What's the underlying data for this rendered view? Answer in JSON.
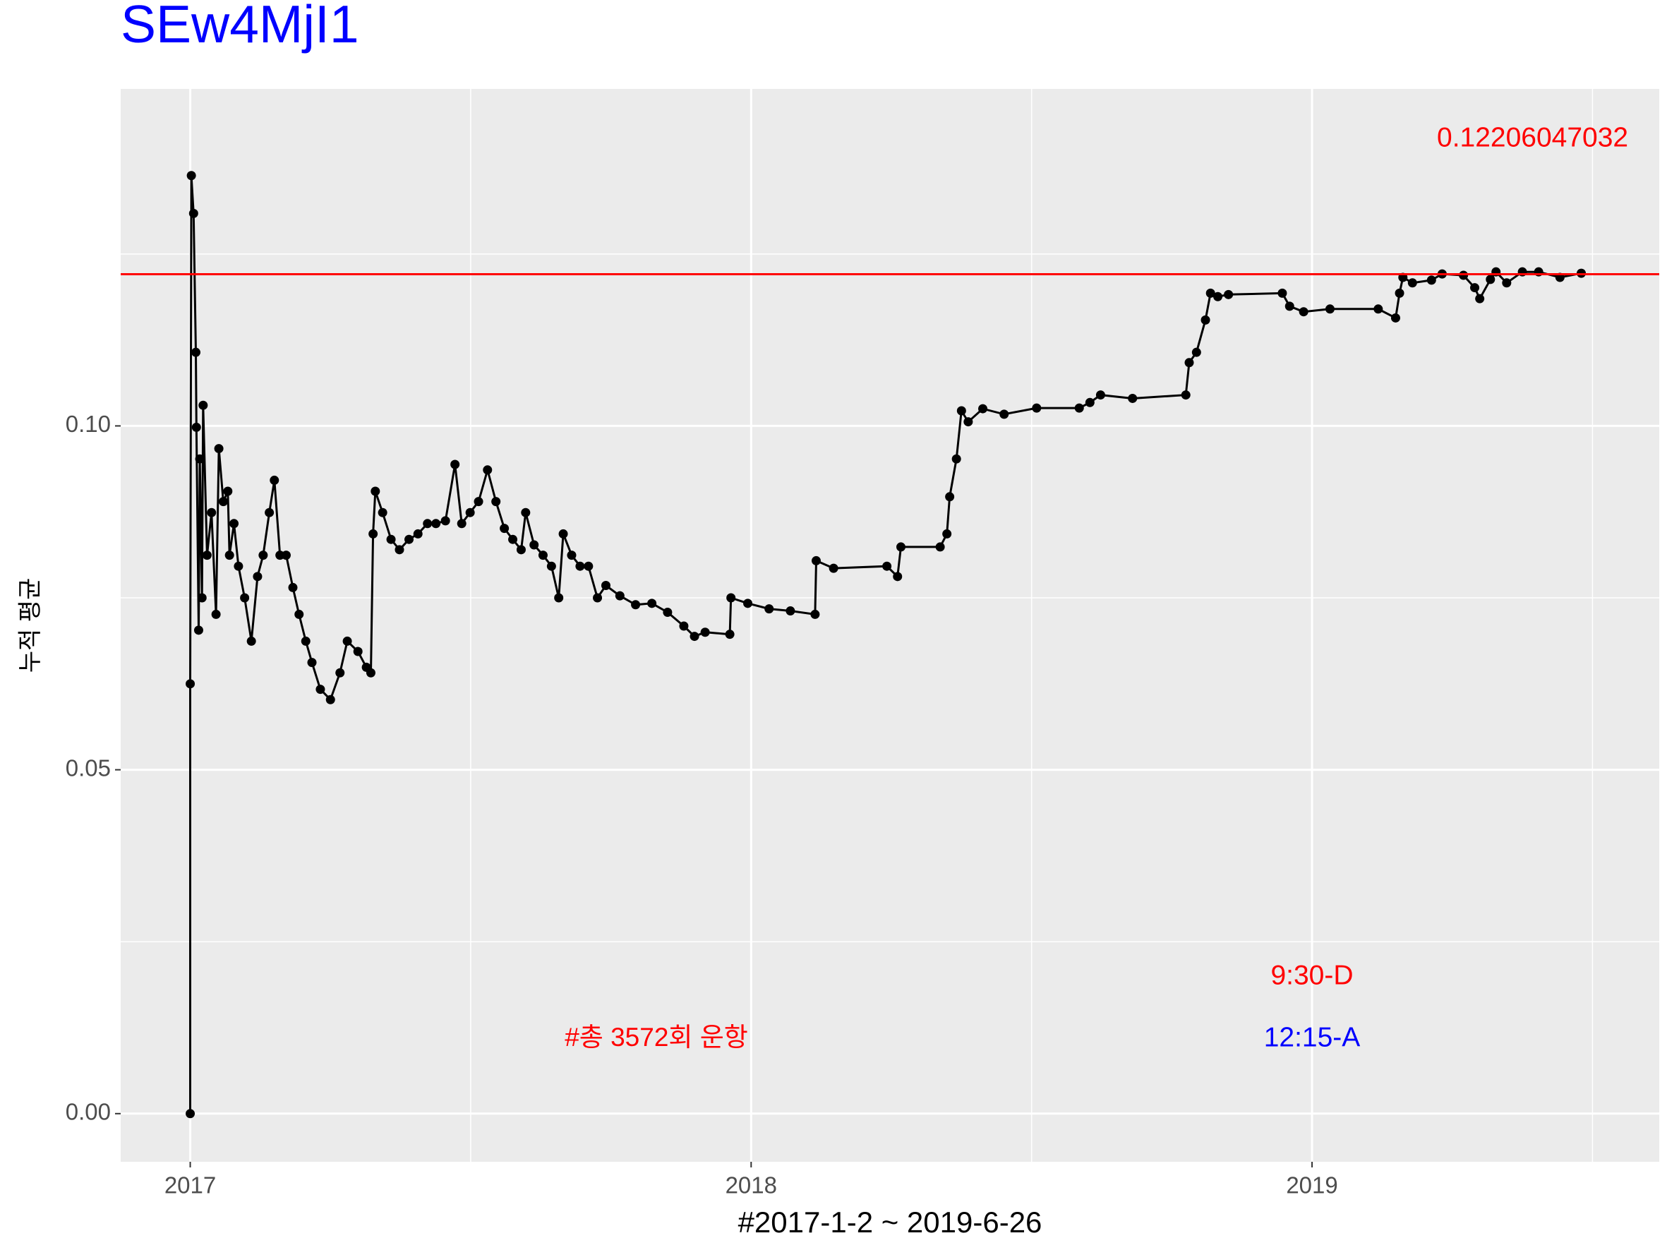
{
  "chart_data": {
    "type": "line",
    "title": "SEw4MjI1",
    "x_label": "#2017-1-2 ~ 2019-6-26",
    "y_label": "누적 평균",
    "color": "#000000",
    "hline": {
      "value": 0.12206047032,
      "color": "#ff0000"
    },
    "annotations": [
      {
        "text": "0.12206047032",
        "color": "#ff0000"
      },
      {
        "text": "9:30-D",
        "color": "#ff0000"
      },
      {
        "text": "12:15-A",
        "color": "#0000ff"
      },
      {
        "text": "#총 3572회 운항",
        "color": "#ff0000"
      }
    ],
    "xlim": [
      2016.876,
      2019.619
    ],
    "ylim": [
      -0.007,
      0.149
    ],
    "xticks": [
      2017,
      2018,
      2019
    ],
    "yticks": [
      {
        "value": 0,
        "label": "0.00"
      },
      {
        "value": 0.05,
        "label": "0.05"
      },
      {
        "value": 0.1,
        "label": "0.10"
      }
    ],
    "grid": true,
    "x": [
      2017.0,
      2017.0,
      2017.002,
      2017.006,
      2017.01,
      2017.011,
      2017.015,
      2017.017,
      2017.021,
      2017.023,
      2017.03,
      2017.038,
      2017.046,
      2017.051,
      2017.059,
      2017.067,
      2017.07,
      2017.078,
      2017.086,
      2017.097,
      2017.109,
      2017.12,
      2017.13,
      2017.141,
      2017.15,
      2017.16,
      2017.171,
      2017.183,
      2017.194,
      2017.206,
      2017.217,
      2017.232,
      2017.25,
      2017.267,
      2017.28,
      2017.299,
      2017.314,
      2017.322,
      2017.326,
      2017.33,
      2017.343,
      2017.358,
      2017.373,
      2017.39,
      2017.406,
      2017.423,
      2017.438,
      2017.455,
      2017.472,
      2017.484,
      2017.499,
      2017.514,
      2017.53,
      2017.545,
      2017.56,
      2017.575,
      2017.59,
      2017.598,
      2017.613,
      2017.629,
      2017.644,
      2017.657,
      2017.665,
      2017.68,
      2017.695,
      2017.71,
      2017.726,
      2017.741,
      2017.766,
      2017.794,
      2017.823,
      2017.851,
      2017.88,
      2017.899,
      2017.918,
      2017.962,
      2017.964,
      2017.994,
      2018.032,
      2018.07,
      2018.114,
      2018.116,
      2018.147,
      2018.242,
      2018.261,
      2018.267,
      2018.337,
      2018.349,
      2018.354,
      2018.366,
      2018.375,
      2018.387,
      2018.413,
      2018.451,
      2018.509,
      2018.585,
      2018.604,
      2018.623,
      2018.68,
      2018.775,
      2018.781,
      2018.794,
      2018.81,
      2018.819,
      2018.832,
      2018.851,
      2018.947,
      2018.96,
      2018.985,
      2019.032,
      2019.118,
      2019.149,
      2019.156,
      2019.162,
      2019.179,
      2019.213,
      2019.232,
      2019.27,
      2019.29,
      2019.299,
      2019.318,
      2019.328,
      2019.347,
      2019.375,
      2019.404,
      2019.442,
      2019.48
    ],
    "values": [
      0.0,
      0.0625,
      0.1364,
      0.1309,
      0.1107,
      0.0998,
      0.0703,
      0.0952,
      0.075,
      0.103,
      0.0812,
      0.0874,
      0.0726,
      0.0967,
      0.089,
      0.0905,
      0.0812,
      0.0858,
      0.0796,
      0.075,
      0.0687,
      0.0781,
      0.0812,
      0.0874,
      0.0921,
      0.0812,
      0.0812,
      0.0765,
      0.0726,
      0.0687,
      0.0656,
      0.0617,
      0.0602,
      0.0641,
      0.0687,
      0.0672,
      0.0649,
      0.0641,
      0.0843,
      0.0905,
      0.0874,
      0.0835,
      0.082,
      0.0835,
      0.0843,
      0.0858,
      0.0858,
      0.0862,
      0.0944,
      0.0858,
      0.0874,
      0.089,
      0.0936,
      0.089,
      0.0851,
      0.0835,
      0.082,
      0.0874,
      0.0827,
      0.0812,
      0.0796,
      0.075,
      0.0843,
      0.0812,
      0.0796,
      0.0796,
      0.075,
      0.0768,
      0.0753,
      0.074,
      0.0742,
      0.0729,
      0.0709,
      0.0694,
      0.07,
      0.0697,
      0.075,
      0.0742,
      0.0734,
      0.0731,
      0.0726,
      0.0804,
      0.0793,
      0.0796,
      0.0781,
      0.0824,
      0.0824,
      0.0843,
      0.0897,
      0.0952,
      0.1022,
      0.1006,
      0.1025,
      0.1017,
      0.1026,
      0.1026,
      0.1034,
      0.1045,
      0.104,
      0.1045,
      0.1092,
      0.1107,
      0.1154,
      0.1193,
      0.1188,
      0.1191,
      0.1193,
      0.1174,
      0.1166,
      0.117,
      0.117,
      0.1157,
      0.1193,
      0.1216,
      0.1208,
      0.1212,
      0.1221,
      0.1219,
      0.1201,
      0.1185,
      0.1213,
      0.1224,
      0.1208,
      0.1224,
      0.1224,
      0.1216,
      0.1222
    ]
  }
}
